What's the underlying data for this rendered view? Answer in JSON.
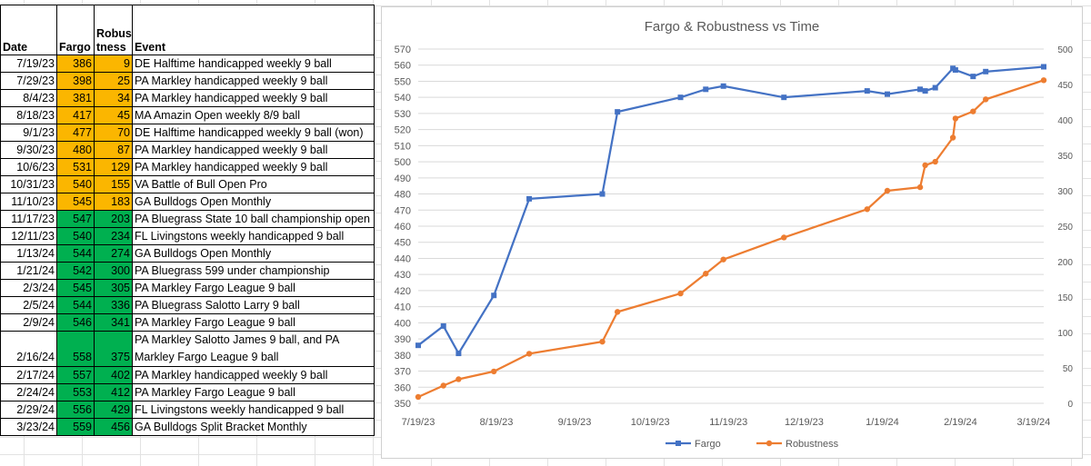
{
  "sheet": {
    "headers": {
      "date": "Date",
      "fargo": "Fargo",
      "robust_1": "Robus",
      "robust_2": "tness",
      "event": "Event"
    },
    "rows": [
      {
        "date": "7/19/23",
        "fargo": "386",
        "robust": "9",
        "event": "DE Halftime handicapped weekly 9 ball",
        "highlight": "orange"
      },
      {
        "date": "7/29/23",
        "fargo": "398",
        "robust": "25",
        "event": "PA Markley handicapped weekly 9 ball",
        "highlight": "orange"
      },
      {
        "date": "8/4/23",
        "fargo": "381",
        "robust": "34",
        "event": "PA Markley handicapped weekly 9 ball",
        "highlight": "orange"
      },
      {
        "date": "8/18/23",
        "fargo": "417",
        "robust": "45",
        "event": "MA Amazin Open weekly 8/9 ball",
        "highlight": "orange"
      },
      {
        "date": "9/1/23",
        "fargo": "477",
        "robust": "70",
        "event": "DE Halftime handicapped weekly 9 ball (won)",
        "highlight": "orange"
      },
      {
        "date": "9/30/23",
        "fargo": "480",
        "robust": "87",
        "event": "PA Markley handicapped weekly 9 ball",
        "highlight": "orange"
      },
      {
        "date": "10/6/23",
        "fargo": "531",
        "robust": "129",
        "event": "PA Markley handicapped weekly 9 ball",
        "highlight": "orange"
      },
      {
        "date": "10/31/23",
        "fargo": "540",
        "robust": "155",
        "event": "VA Battle of Bull Open Pro",
        "highlight": "orange"
      },
      {
        "date": "11/10/23",
        "fargo": "545",
        "robust": "183",
        "event": "GA Bulldogs Open Monthly",
        "highlight": "orange"
      },
      {
        "date": "11/17/23",
        "fargo": "547",
        "robust": "203",
        "event": "PA Bluegrass State 10 ball championship open",
        "highlight": "green"
      },
      {
        "date": "12/11/23",
        "fargo": "540",
        "robust": "234",
        "event": "FL Livingstons weekly handicapped 9 ball",
        "highlight": "green"
      },
      {
        "date": "1/13/24",
        "fargo": "544",
        "robust": "274",
        "event": "GA Bulldogs Open Monthly",
        "highlight": "green"
      },
      {
        "date": "1/21/24",
        "fargo": "542",
        "robust": "300",
        "event": "PA Bluegrass 599 under championship",
        "highlight": "green"
      },
      {
        "date": "2/3/24",
        "fargo": "545",
        "robust": "305",
        "event": "PA Markley Fargo League 9 ball",
        "highlight": "green"
      },
      {
        "date": "2/5/24",
        "fargo": "544",
        "robust": "336",
        "event": "PA Bluegrass Salotto Larry 9 ball",
        "highlight": "green"
      },
      {
        "date": "2/9/24",
        "fargo": "546",
        "robust": "341",
        "event": "PA Markley Fargo League 9 ball",
        "highlight": "green"
      },
      {
        "date": "2/16/24",
        "fargo": "558",
        "robust": "375",
        "event": "PA Markley Salotto James 9 ball, and PA Markley Fargo League 9 ball",
        "highlight": "green",
        "tall": true
      },
      {
        "date": "2/17/24",
        "fargo": "557",
        "robust": "402",
        "event": "PA Markley handicapped weekly 9 ball",
        "highlight": "green"
      },
      {
        "date": "2/24/24",
        "fargo": "553",
        "robust": "412",
        "event": "PA Markley Fargo League 9 ball",
        "highlight": "green"
      },
      {
        "date": "2/29/24",
        "fargo": "556",
        "robust": "429",
        "event": "FL Livingstons weekly handicapped 9 ball",
        "highlight": "green"
      },
      {
        "date": "3/23/24",
        "fargo": "559",
        "robust": "456",
        "event": "GA Bulldogs Split Bracket Monthly",
        "highlight": "green"
      }
    ],
    "colors": {
      "orange": "#fbb600",
      "green": "#00b050"
    }
  },
  "chart_data": {
    "type": "line",
    "title": "Fargo & Robustness vs Time",
    "x": [
      "7/19/23",
      "7/29/23",
      "8/4/23",
      "8/18/23",
      "9/1/23",
      "9/30/23",
      "10/6/23",
      "10/31/23",
      "11/10/23",
      "11/17/23",
      "12/11/23",
      "1/13/24",
      "1/21/24",
      "2/3/24",
      "2/5/24",
      "2/9/24",
      "2/16/24",
      "2/17/24",
      "2/24/24",
      "2/29/24",
      "3/23/24"
    ],
    "x_days": [
      0,
      10,
      16,
      30,
      44,
      73,
      79,
      104,
      114,
      121,
      145,
      178,
      186,
      199,
      201,
      205,
      212,
      213,
      220,
      225,
      248
    ],
    "x_ticks": [
      "7/19/23",
      "8/19/23",
      "9/19/23",
      "10/19/23",
      "11/19/23",
      "12/19/23",
      "1/19/24",
      "2/19/24",
      "3/19/24"
    ],
    "x_tick_days": [
      0,
      31,
      62,
      92,
      123,
      153,
      184,
      215,
      244
    ],
    "series": [
      {
        "name": "Fargo",
        "axis": "left",
        "color": "#4472c4",
        "marker": "square",
        "values": [
          386,
          398,
          381,
          417,
          477,
          480,
          531,
          540,
          545,
          547,
          540,
          544,
          542,
          545,
          544,
          546,
          558,
          557,
          553,
          556,
          559
        ]
      },
      {
        "name": "Robustness",
        "axis": "right",
        "color": "#ed7d31",
        "marker": "circle",
        "values": [
          9,
          25,
          34,
          45,
          70,
          87,
          129,
          155,
          183,
          203,
          234,
          274,
          300,
          305,
          336,
          341,
          375,
          402,
          412,
          429,
          456
        ]
      }
    ],
    "y_left": {
      "min": 350,
      "max": 570,
      "step": 10
    },
    "y_right": {
      "min": 0,
      "max": 500,
      "step": 50
    },
    "grid": true,
    "legend": "bottom"
  }
}
